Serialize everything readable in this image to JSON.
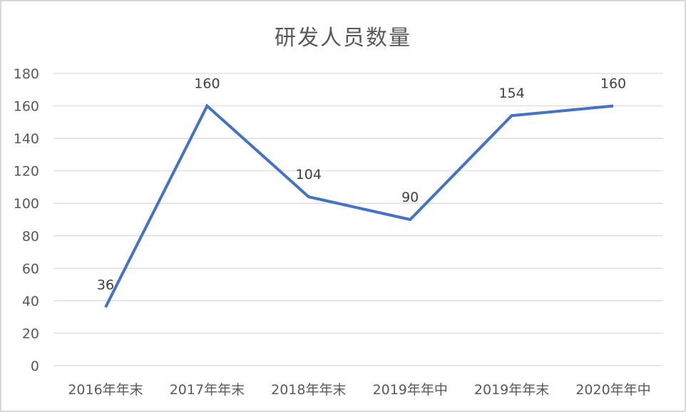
{
  "chart": {
    "title": "研发人员数量",
    "line_color": "#4472c4",
    "grid_color": "#d9d9d9",
    "text_color": "#595959"
  },
  "chart_data": {
    "type": "line",
    "title": "研发人员数量",
    "xlabel": "",
    "ylabel": "",
    "categories": [
      "2016年年末",
      "2017年年末",
      "2018年年末",
      "2019年年中",
      "2019年年末",
      "2020年年中"
    ],
    "series": [
      {
        "name": "研发人员数量",
        "values": [
          36,
          160,
          104,
          90,
          154,
          160
        ]
      }
    ],
    "ylim": [
      0,
      180
    ],
    "yticks": [
      0,
      20,
      40,
      60,
      80,
      100,
      120,
      140,
      160,
      180
    ],
    "grid": true,
    "legend": "none",
    "data_labels": [
      "36",
      "160",
      "104",
      "90",
      "154",
      "160"
    ]
  }
}
